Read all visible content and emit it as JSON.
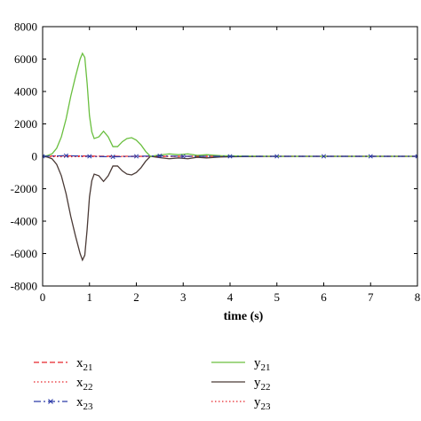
{
  "chart_data": {
    "type": "line",
    "title": "",
    "xlabel": "time (s)",
    "ylabel": "",
    "xlim": [
      0,
      8
    ],
    "ylim": [
      -8000,
      8000
    ],
    "xticks": [
      0,
      1,
      2,
      3,
      4,
      5,
      6,
      7,
      8
    ],
    "yticks": [
      8000,
      6000,
      4000,
      2000,
      0,
      -2000,
      -4000,
      -6000,
      -8000
    ],
    "grid": false,
    "legend_position": "bottom",
    "series": [
      {
        "name": "x",
        "sub": "21",
        "color": "#e8252a",
        "style": "dashed",
        "x": [
          0,
          0.2,
          0.5,
          0.85,
          1.2,
          2.0,
          2.5,
          3.5,
          8
        ],
        "y": [
          0,
          20,
          30,
          20,
          10,
          0,
          0,
          0,
          0
        ]
      },
      {
        "name": "x",
        "sub": "22",
        "color": "#e8252a",
        "style": "dotted",
        "x": [
          0,
          0.2,
          0.5,
          0.85,
          1.2,
          2.0,
          2.5,
          3.5,
          8
        ],
        "y": [
          0,
          -20,
          -30,
          -20,
          -10,
          0,
          0,
          0,
          0
        ]
      },
      {
        "name": "x",
        "sub": "23",
        "color": "#2b3aa8",
        "style": "dashdot-marker",
        "x": [
          0,
          0.5,
          1.0,
          1.5,
          2.0,
          2.5,
          3.0,
          4.0,
          5.0,
          6.0,
          7.0,
          8.0
        ],
        "y": [
          0,
          40,
          0,
          -30,
          0,
          30,
          0,
          0,
          0,
          0,
          0,
          0
        ]
      },
      {
        "name": "y",
        "sub": "21",
        "color": "#6abf3f",
        "style": "solid",
        "x": [
          0,
          0.1,
          0.2,
          0.3,
          0.4,
          0.5,
          0.6,
          0.7,
          0.8,
          0.85,
          0.9,
          0.95,
          1.0,
          1.05,
          1.1,
          1.2,
          1.3,
          1.4,
          1.5,
          1.6,
          1.7,
          1.8,
          1.9,
          2.0,
          2.1,
          2.2,
          2.3,
          2.5,
          2.7,
          2.9,
          3.1,
          3.3,
          3.5,
          3.8,
          4.2,
          5,
          6,
          7,
          8
        ],
        "y": [
          0,
          50,
          150,
          500,
          1200,
          2300,
          3700,
          4900,
          6000,
          6350,
          6100,
          4500,
          2500,
          1500,
          1100,
          1200,
          1550,
          1200,
          600,
          600,
          900,
          1100,
          1150,
          1000,
          700,
          300,
          0,
          80,
          150,
          100,
          150,
          60,
          100,
          40,
          20,
          0,
          0,
          0,
          0
        ]
      },
      {
        "name": "y",
        "sub": "22",
        "color": "#4a3a36",
        "style": "solid",
        "x": [
          0,
          0.1,
          0.2,
          0.3,
          0.4,
          0.5,
          0.6,
          0.7,
          0.8,
          0.85,
          0.9,
          0.95,
          1.0,
          1.05,
          1.1,
          1.2,
          1.3,
          1.4,
          1.5,
          1.6,
          1.7,
          1.8,
          1.9,
          2.0,
          2.1,
          2.2,
          2.3,
          2.5,
          2.7,
          2.9,
          3.1,
          3.3,
          3.5,
          3.8,
          4.2,
          5,
          6,
          7,
          8
        ],
        "y": [
          0,
          -50,
          -150,
          -500,
          -1200,
          -2300,
          -3700,
          -4900,
          -6000,
          -6400,
          -6100,
          -4500,
          -2500,
          -1500,
          -1100,
          -1200,
          -1550,
          -1200,
          -600,
          -600,
          -900,
          -1100,
          -1150,
          -1000,
          -700,
          -300,
          0,
          -80,
          -150,
          -100,
          -150,
          -60,
          -100,
          -40,
          -20,
          0,
          0,
          0,
          0
        ]
      },
      {
        "name": "y",
        "sub": "23",
        "color": "#e8252a",
        "style": "dotted",
        "x": [
          0,
          0.5,
          1.0,
          2.0,
          3.0,
          8.0
        ],
        "y": [
          0,
          10,
          0,
          -10,
          0,
          0
        ]
      }
    ]
  }
}
